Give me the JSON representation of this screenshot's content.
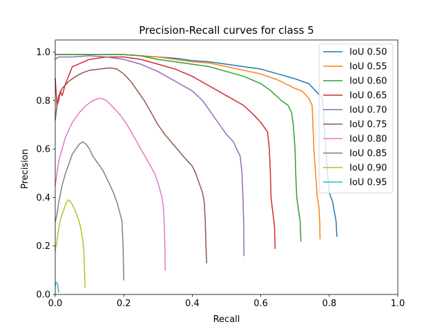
{
  "chart_data": {
    "type": "line",
    "title": "Precision-Recall curves for class 5",
    "xlabel": "Recall",
    "ylabel": "Precision",
    "xlim": [
      0,
      1
    ],
    "ylim": [
      0,
      1.05
    ],
    "xticks": [
      "0.0",
      "0.2",
      "0.4",
      "0.6",
      "0.8",
      "1.0"
    ],
    "yticks": [
      "0.0",
      "0.2",
      "0.4",
      "0.6",
      "0.8",
      "1.0"
    ],
    "grid": false,
    "legend_position": "top-right",
    "series": [
      {
        "name": "IoU 0.50",
        "color": "#1f77b4",
        "points": [
          [
            0.0,
            0.99
          ],
          [
            0.02,
            0.99
          ],
          [
            0.05,
            0.99
          ],
          [
            0.1,
            0.99
          ],
          [
            0.2,
            0.99
          ],
          [
            0.25,
            0.985
          ],
          [
            0.3,
            0.98
          ],
          [
            0.35,
            0.975
          ],
          [
            0.4,
            0.965
          ],
          [
            0.45,
            0.96
          ],
          [
            0.5,
            0.95
          ],
          [
            0.55,
            0.94
          ],
          [
            0.6,
            0.93
          ],
          [
            0.65,
            0.91
          ],
          [
            0.7,
            0.89
          ],
          [
            0.72,
            0.88
          ],
          [
            0.74,
            0.87
          ],
          [
            0.76,
            0.84
          ],
          [
            0.78,
            0.81
          ],
          [
            0.785,
            0.7
          ],
          [
            0.79,
            0.6
          ],
          [
            0.795,
            0.5
          ],
          [
            0.8,
            0.42
          ],
          [
            0.81,
            0.38
          ],
          [
            0.815,
            0.34
          ],
          [
            0.82,
            0.3
          ],
          [
            0.822,
            0.24
          ]
        ]
      },
      {
        "name": "IoU 0.55",
        "color": "#ff7f0e",
        "points": [
          [
            0.0,
            0.99
          ],
          [
            0.02,
            0.99
          ],
          [
            0.05,
            0.99
          ],
          [
            0.1,
            0.99
          ],
          [
            0.2,
            0.99
          ],
          [
            0.25,
            0.985
          ],
          [
            0.3,
            0.98
          ],
          [
            0.35,
            0.97
          ],
          [
            0.4,
            0.96
          ],
          [
            0.45,
            0.955
          ],
          [
            0.5,
            0.94
          ],
          [
            0.55,
            0.925
          ],
          [
            0.6,
            0.91
          ],
          [
            0.65,
            0.885
          ],
          [
            0.7,
            0.85
          ],
          [
            0.72,
            0.84
          ],
          [
            0.74,
            0.81
          ],
          [
            0.75,
            0.78
          ],
          [
            0.755,
            0.6
          ],
          [
            0.76,
            0.5
          ],
          [
            0.765,
            0.4
          ],
          [
            0.77,
            0.36
          ],
          [
            0.772,
            0.3
          ],
          [
            0.773,
            0.23
          ]
        ]
      },
      {
        "name": "IoU 0.60",
        "color": "#2ca02c",
        "points": [
          [
            0.0,
            0.99
          ],
          [
            0.02,
            0.99
          ],
          [
            0.05,
            0.99
          ],
          [
            0.1,
            0.99
          ],
          [
            0.2,
            0.99
          ],
          [
            0.25,
            0.985
          ],
          [
            0.3,
            0.97
          ],
          [
            0.35,
            0.96
          ],
          [
            0.4,
            0.95
          ],
          [
            0.45,
            0.94
          ],
          [
            0.5,
            0.92
          ],
          [
            0.55,
            0.9
          ],
          [
            0.6,
            0.87
          ],
          [
            0.63,
            0.84
          ],
          [
            0.66,
            0.8
          ],
          [
            0.68,
            0.78
          ],
          [
            0.69,
            0.75
          ],
          [
            0.695,
            0.7
          ],
          [
            0.7,
            0.6
          ],
          [
            0.702,
            0.5
          ],
          [
            0.705,
            0.4
          ],
          [
            0.71,
            0.35
          ],
          [
            0.715,
            0.3
          ],
          [
            0.717,
            0.22
          ]
        ]
      },
      {
        "name": "IoU 0.65",
        "color": "#d62728",
        "points": [
          [
            0.0,
            0.89
          ],
          [
            0.005,
            0.78
          ],
          [
            0.01,
            0.8
          ],
          [
            0.015,
            0.84
          ],
          [
            0.02,
            0.82
          ],
          [
            0.03,
            0.87
          ],
          [
            0.05,
            0.94
          ],
          [
            0.1,
            0.97
          ],
          [
            0.15,
            0.98
          ],
          [
            0.2,
            0.98
          ],
          [
            0.25,
            0.97
          ],
          [
            0.3,
            0.95
          ],
          [
            0.35,
            0.93
          ],
          [
            0.4,
            0.9
          ],
          [
            0.45,
            0.86
          ],
          [
            0.5,
            0.82
          ],
          [
            0.55,
            0.78
          ],
          [
            0.58,
            0.74
          ],
          [
            0.6,
            0.71
          ],
          [
            0.62,
            0.67
          ],
          [
            0.625,
            0.6
          ],
          [
            0.628,
            0.5
          ],
          [
            0.63,
            0.4
          ],
          [
            0.635,
            0.34
          ],
          [
            0.64,
            0.28
          ],
          [
            0.642,
            0.19
          ]
        ]
      },
      {
        "name": "IoU 0.70",
        "color": "#9467bd",
        "points": [
          [
            0.0,
            0.97
          ],
          [
            0.01,
            0.98
          ],
          [
            0.02,
            0.98
          ],
          [
            0.05,
            0.98
          ],
          [
            0.1,
            0.985
          ],
          [
            0.15,
            0.98
          ],
          [
            0.2,
            0.97
          ],
          [
            0.25,
            0.95
          ],
          [
            0.3,
            0.92
          ],
          [
            0.35,
            0.88
          ],
          [
            0.4,
            0.84
          ],
          [
            0.43,
            0.8
          ],
          [
            0.45,
            0.76
          ],
          [
            0.48,
            0.7
          ],
          [
            0.5,
            0.66
          ],
          [
            0.52,
            0.63
          ],
          [
            0.53,
            0.6
          ],
          [
            0.54,
            0.57
          ],
          [
            0.545,
            0.5
          ],
          [
            0.548,
            0.4
          ],
          [
            0.55,
            0.3
          ],
          [
            0.551,
            0.16
          ]
        ]
      },
      {
        "name": "IoU 0.75",
        "color": "#8c564b",
        "points": [
          [
            0.0,
            0.72
          ],
          [
            0.005,
            0.78
          ],
          [
            0.01,
            0.82
          ],
          [
            0.02,
            0.85
          ],
          [
            0.04,
            0.88
          ],
          [
            0.06,
            0.9
          ],
          [
            0.08,
            0.915
          ],
          [
            0.1,
            0.925
          ],
          [
            0.13,
            0.93
          ],
          [
            0.16,
            0.935
          ],
          [
            0.18,
            0.93
          ],
          [
            0.2,
            0.91
          ],
          [
            0.22,
            0.88
          ],
          [
            0.24,
            0.84
          ],
          [
            0.26,
            0.8
          ],
          [
            0.28,
            0.75
          ],
          [
            0.3,
            0.7
          ],
          [
            0.32,
            0.66
          ],
          [
            0.35,
            0.61
          ],
          [
            0.38,
            0.56
          ],
          [
            0.4,
            0.53
          ],
          [
            0.41,
            0.5
          ],
          [
            0.42,
            0.46
          ],
          [
            0.43,
            0.42
          ],
          [
            0.435,
            0.38
          ],
          [
            0.438,
            0.3
          ],
          [
            0.44,
            0.2
          ],
          [
            0.442,
            0.13
          ]
        ]
      },
      {
        "name": "IoU 0.80",
        "color": "#e377c2",
        "points": [
          [
            0.0,
            0.45
          ],
          [
            0.005,
            0.5
          ],
          [
            0.01,
            0.55
          ],
          [
            0.02,
            0.6
          ],
          [
            0.03,
            0.65
          ],
          [
            0.05,
            0.71
          ],
          [
            0.07,
            0.75
          ],
          [
            0.09,
            0.78
          ],
          [
            0.11,
            0.8
          ],
          [
            0.13,
            0.81
          ],
          [
            0.15,
            0.8
          ],
          [
            0.17,
            0.77
          ],
          [
            0.19,
            0.74
          ],
          [
            0.21,
            0.7
          ],
          [
            0.23,
            0.65
          ],
          [
            0.25,
            0.6
          ],
          [
            0.27,
            0.55
          ],
          [
            0.29,
            0.5
          ],
          [
            0.3,
            0.46
          ],
          [
            0.31,
            0.41
          ],
          [
            0.315,
            0.37
          ],
          [
            0.318,
            0.3
          ],
          [
            0.32,
            0.2
          ],
          [
            0.321,
            0.1
          ]
        ]
      },
      {
        "name": "IoU 0.85",
        "color": "#7f7f7f",
        "points": [
          [
            0.0,
            0.3
          ],
          [
            0.005,
            0.33
          ],
          [
            0.01,
            0.38
          ],
          [
            0.02,
            0.45
          ],
          [
            0.03,
            0.5
          ],
          [
            0.04,
            0.54
          ],
          [
            0.05,
            0.58
          ],
          [
            0.06,
            0.6
          ],
          [
            0.07,
            0.62
          ],
          [
            0.08,
            0.63
          ],
          [
            0.09,
            0.62
          ],
          [
            0.1,
            0.6
          ],
          [
            0.11,
            0.57
          ],
          [
            0.12,
            0.55
          ],
          [
            0.13,
            0.53
          ],
          [
            0.14,
            0.51
          ],
          [
            0.15,
            0.48
          ],
          [
            0.16,
            0.45
          ],
          [
            0.17,
            0.42
          ],
          [
            0.18,
            0.38
          ],
          [
            0.19,
            0.33
          ],
          [
            0.195,
            0.3
          ],
          [
            0.198,
            0.2
          ],
          [
            0.2,
            0.06
          ]
        ]
      },
      {
        "name": "IoU 0.90",
        "color": "#bcbd22",
        "points": [
          [
            0.0,
            0.18
          ],
          [
            0.005,
            0.22
          ],
          [
            0.01,
            0.27
          ],
          [
            0.015,
            0.31
          ],
          [
            0.02,
            0.33
          ],
          [
            0.025,
            0.35
          ],
          [
            0.03,
            0.37
          ],
          [
            0.035,
            0.385
          ],
          [
            0.04,
            0.39
          ],
          [
            0.045,
            0.38
          ],
          [
            0.05,
            0.37
          ],
          [
            0.06,
            0.34
          ],
          [
            0.07,
            0.3
          ],
          [
            0.075,
            0.27
          ],
          [
            0.08,
            0.23
          ],
          [
            0.083,
            0.19
          ],
          [
            0.085,
            0.12
          ],
          [
            0.087,
            0.03
          ]
        ]
      },
      {
        "name": "IoU 0.95",
        "color": "#17becf",
        "points": [
          [
            0.0,
            0.04
          ],
          [
            0.002,
            0.05
          ],
          [
            0.004,
            0.048
          ],
          [
            0.006,
            0.045
          ],
          [
            0.008,
            0.03
          ],
          [
            0.01,
            0.01
          ]
        ]
      }
    ]
  }
}
